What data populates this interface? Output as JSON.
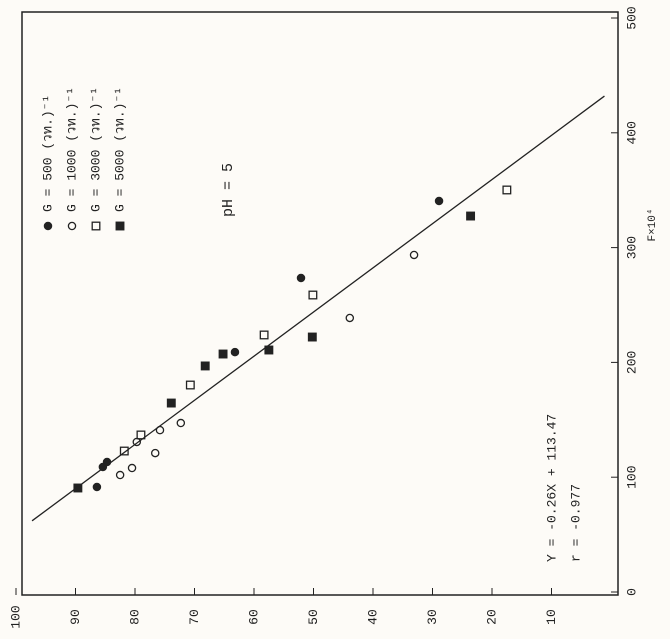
{
  "chart_data": {
    "type": "scatter",
    "x_label": "F×10⁴",
    "xlim": [
      0,
      500
    ],
    "xticks": [
      0,
      100,
      200,
      300,
      400,
      500
    ],
    "ylim": [
      0,
      100
    ],
    "yticks": [
      10,
      20,
      30,
      40,
      50,
      60,
      70,
      80,
      90,
      100
    ],
    "series": [
      {
        "name": "G = 500 (วท.)⁻¹",
        "color": "#222222",
        "marker": "circle",
        "filled": true,
        "x": [
          91.5,
          108.9,
          113.2,
          209,
          273.5,
          340.6
        ],
        "values": [
          86.4,
          85.4,
          84.7,
          63.2,
          52.1,
          28.9
        ]
      },
      {
        "name": "G = 1000 (วท.)⁻¹",
        "color": "#222222",
        "marker": "circle",
        "filled": false,
        "x": [
          101.9,
          108,
          130.7,
          121,
          141,
          147.2,
          238.7,
          293.6
        ],
        "values": [
          82.5,
          80.5,
          79.7,
          76.6,
          75.8,
          72.3,
          43.9,
          33.1
        ]
      },
      {
        "name": "G = 3000 (วท.)⁻¹",
        "color": "#222222",
        "marker": "square",
        "filled": false,
        "x": [
          122.8,
          136.8,
          180.3,
          223.9,
          258.7,
          350.2
        ],
        "values": [
          81.8,
          79,
          70.7,
          58.3,
          50.1,
          17.5
        ]
      },
      {
        "name": "G = 5000 (วท.)⁻¹",
        "color": "#222222",
        "marker": "square",
        "filled": true,
        "x": [
          90.6,
          164.6,
          196.9,
          207.3,
          210.8,
          222.1,
          327.5
        ],
        "values": [
          89.6,
          73.9,
          68.2,
          65.2,
          57.5,
          50.2,
          23.6
        ]
      }
    ],
    "trend_line": {
      "x": [
        62,
        432
      ],
      "values": [
        97.3,
        1.1
      ]
    },
    "annotations": [
      "pH = 5",
      "Y = -0.26X + 113.47",
      "r = -0.977"
    ]
  }
}
